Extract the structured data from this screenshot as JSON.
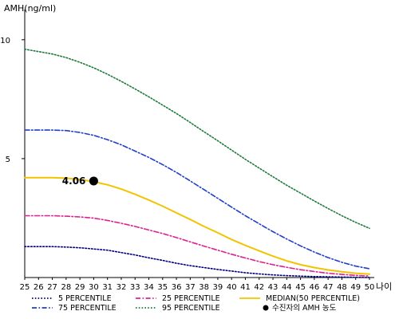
{
  "chart_data": {
    "type": "line",
    "ylabel": "AMH(ng/ml)",
    "xlabel": "나이",
    "xlim": [
      25,
      50
    ],
    "ylim": [
      0,
      11
    ],
    "x_ticks": [
      25,
      26,
      27,
      28,
      29,
      30,
      31,
      32,
      33,
      34,
      35,
      36,
      37,
      38,
      39,
      40,
      41,
      42,
      43,
      44,
      45,
      46,
      47,
      48,
      49,
      50
    ],
    "y_ticks": [
      5,
      10
    ],
    "grid": false,
    "x": [
      25,
      26,
      27,
      28,
      29,
      30,
      31,
      32,
      33,
      34,
      35,
      36,
      37,
      38,
      39,
      40,
      41,
      42,
      43,
      44,
      45,
      46,
      47,
      48,
      49,
      50
    ],
    "series": [
      {
        "name": "5 PERCENTILE",
        "color": "#000080",
        "style": "dotted",
        "values": [
          1.3,
          1.3,
          1.3,
          1.28,
          1.25,
          1.2,
          1.15,
          1.05,
          0.95,
          0.83,
          0.72,
          0.6,
          0.5,
          0.42,
          0.34,
          0.27,
          0.2,
          0.15,
          0.11,
          0.08,
          0.06,
          0.04,
          0.03,
          0.02,
          0.01,
          0.0
        ]
      },
      {
        "name": "25 PERCENTILE",
        "color": "#e0208f",
        "style": "dashdot",
        "values": [
          2.6,
          2.6,
          2.6,
          2.58,
          2.55,
          2.5,
          2.4,
          2.28,
          2.15,
          2.0,
          1.85,
          1.68,
          1.5,
          1.32,
          1.15,
          0.98,
          0.82,
          0.67,
          0.54,
          0.43,
          0.33,
          0.25,
          0.18,
          0.13,
          0.09,
          0.06
        ]
      },
      {
        "name": "MEDIAN(50 PERCENTILE)",
        "color": "#f2c400",
        "style": "solid",
        "values": [
          4.2,
          4.2,
          4.2,
          4.18,
          4.12,
          4.03,
          3.9,
          3.72,
          3.5,
          3.26,
          3.0,
          2.72,
          2.44,
          2.15,
          1.88,
          1.6,
          1.35,
          1.12,
          0.9,
          0.7,
          0.54,
          0.42,
          0.32,
          0.24,
          0.18,
          0.14
        ]
      },
      {
        "name": "75 PERCENTILE",
        "color": "#1f3fc8",
        "style": "dashdot",
        "values": [
          6.2,
          6.2,
          6.2,
          6.18,
          6.1,
          5.98,
          5.8,
          5.58,
          5.32,
          5.05,
          4.75,
          4.42,
          4.06,
          3.7,
          3.33,
          2.96,
          2.6,
          2.26,
          1.93,
          1.62,
          1.33,
          1.07,
          0.84,
          0.64,
          0.48,
          0.37
        ]
      },
      {
        "name": "95 PERCENTILE",
        "color": "#1e7a3c",
        "style": "dotted",
        "values": [
          9.6,
          9.5,
          9.4,
          9.25,
          9.05,
          8.82,
          8.55,
          8.25,
          7.93,
          7.6,
          7.25,
          6.9,
          6.52,
          6.13,
          5.75,
          5.36,
          4.97,
          4.6,
          4.24,
          3.88,
          3.55,
          3.22,
          2.9,
          2.6,
          2.32,
          2.07
        ]
      }
    ],
    "marker": {
      "name": "수진자의 AMH 농도",
      "x": 30,
      "y": 4.06,
      "label": "4.06",
      "color": "#000000"
    },
    "legend": {
      "placement": "bottom",
      "items": [
        {
          "label": "5 PERCENTILE",
          "series": 0
        },
        {
          "label": "25 PERCENTILE",
          "series": 1
        },
        {
          "label": "MEDIAN(50 PERCENTILE)",
          "series": 2
        },
        {
          "label": "75 PERCENTILE",
          "series": 3
        },
        {
          "label": "95 PERCENTILE",
          "series": 4
        },
        {
          "label": "수진자의 AMH 농도",
          "marker": true
        }
      ]
    }
  }
}
